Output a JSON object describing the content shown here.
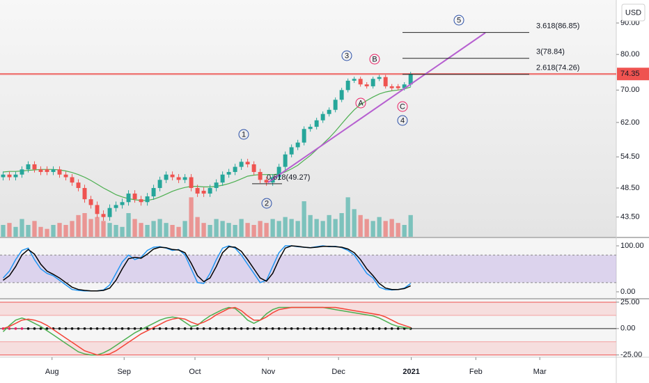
{
  "chart_data": [
    {
      "type": "candlestick",
      "currency": "USD",
      "ylim": [
        40.4,
        98.1
      ],
      "log_scale": true,
      "yticks": [
        {
          "value": 90,
          "label": "90.00"
        },
        {
          "value": 80,
          "label": "80.00"
        },
        {
          "value": 70,
          "label": "70.00"
        },
        {
          "value": 62,
          "label": "62.00"
        },
        {
          "value": 54.5,
          "label": "54.50"
        },
        {
          "value": 48.5,
          "label": "48.50"
        },
        {
          "value": 43.5,
          "label": "43.50"
        }
      ],
      "xlim": [
        -0.5,
        97.8
      ],
      "xticks": [
        {
          "value": 7.8,
          "label": "Aug"
        },
        {
          "value": 19.3,
          "label": "Sep"
        },
        {
          "value": 30.6,
          "label": "Oct"
        },
        {
          "value": 42.3,
          "label": "Nov"
        },
        {
          "value": 53.5,
          "label": "Dec"
        },
        {
          "value": 65.1,
          "label": "2021"
        },
        {
          "value": 75.4,
          "label": "Feb"
        },
        {
          "value": 85.6,
          "label": "Mar"
        }
      ],
      "up_color": "#26a69a",
      "down_color": "#ef5350",
      "open": [
        50.5,
        51,
        50.5,
        51,
        52,
        53,
        52,
        52,
        51.5,
        52,
        51,
        50.5,
        49.5,
        48.5,
        46.5,
        45.5,
        44,
        43.5,
        45,
        45.5,
        46,
        47.5,
        46.5,
        46,
        47,
        48.5,
        50,
        51,
        50.5,
        50,
        50.5,
        48.5,
        48,
        47.5,
        48.5,
        49.5,
        51,
        51.5,
        52.5,
        53.5,
        53,
        51.5,
        50,
        49.5,
        50.5,
        52.5,
        55,
        56.5,
        57.5,
        60.5,
        61,
        62.5,
        64,
        65,
        67.5,
        70,
        72.5,
        73,
        71.5,
        71,
        73,
        73.5,
        71,
        71,
        70.5,
        71.5
      ],
      "high": [
        51.6,
        51.6,
        51.6,
        52.6,
        53.6,
        53.6,
        52.6,
        52.6,
        52.6,
        52.6,
        51.6,
        51.1,
        50.1,
        49.1,
        47.1,
        46.1,
        44.6,
        45.6,
        46.1,
        46.6,
        48.1,
        48.1,
        47.1,
        47.6,
        49.1,
        50.6,
        51.6,
        51.6,
        51.1,
        51.1,
        51.1,
        49.1,
        48.6,
        49.1,
        50.1,
        51.6,
        52.1,
        53.1,
        54.1,
        54.1,
        53.6,
        52.1,
        50.6,
        51.1,
        53.1,
        55.6,
        57.1,
        58.1,
        61.1,
        61.6,
        63.1,
        64.6,
        65.6,
        68.1,
        70.6,
        73.1,
        73.6,
        73.6,
        72.1,
        73.6,
        74.1,
        74.1,
        71.6,
        71.6,
        72.1,
        74.95
      ],
      "low": [
        49.9,
        49.9,
        49.9,
        50.4,
        51.4,
        51.4,
        50.9,
        50.9,
        50.9,
        50.4,
        49.9,
        48.9,
        47.9,
        45.9,
        44.9,
        43.4,
        42.9,
        42.9,
        44.4,
        44.9,
        45.4,
        45.9,
        45.4,
        45.4,
        46.4,
        47.9,
        49.4,
        49.9,
        49.4,
        49.4,
        47.9,
        46.9,
        46.9,
        46.9,
        47.9,
        48.9,
        50.4,
        50.9,
        51.9,
        52.4,
        50.9,
        49.4,
        48.9,
        48.9,
        49.9,
        51.9,
        54.4,
        55.9,
        56.9,
        59.9,
        60.4,
        61.9,
        63.4,
        64.4,
        66.9,
        69.4,
        71.9,
        70.9,
        70.4,
        70.4,
        72.4,
        70.4,
        69.9,
        69.9,
        69.9,
        70.9
      ],
      "close": [
        51,
        50.5,
        51,
        52,
        53,
        52,
        51.5,
        51.5,
        52,
        51,
        50.5,
        49.5,
        48.5,
        46.5,
        45.5,
        44,
        43.5,
        45,
        45.5,
        46,
        47.5,
        46.5,
        46,
        47,
        48.5,
        50,
        51,
        50.5,
        50,
        50.5,
        48.5,
        47.5,
        47.5,
        48.5,
        49.5,
        51,
        51.5,
        52.5,
        53.5,
        53,
        51.5,
        50,
        49.5,
        50.5,
        52.5,
        55,
        56.5,
        57.5,
        60.5,
        61,
        62.5,
        64,
        65,
        67.5,
        70,
        72.5,
        73,
        71.5,
        71,
        73,
        73.5,
        71,
        70.5,
        70.5,
        71.5,
        74.35
      ],
      "volume": [
        30,
        35,
        25,
        45,
        30,
        40,
        25,
        20,
        30,
        35,
        30,
        40,
        55,
        60,
        45,
        50,
        40,
        35,
        30,
        25,
        60,
        45,
        35,
        30,
        40,
        45,
        35,
        30,
        25,
        40,
        100,
        50,
        35,
        30,
        45,
        40,
        35,
        30,
        45,
        35,
        30,
        40,
        35,
        45,
        40,
        50,
        45,
        40,
        90,
        55,
        45,
        40,
        55,
        45,
        60,
        100,
        70,
        55,
        45,
        40,
        50,
        40,
        45,
        35,
        30,
        55
      ],
      "volume_ylim": [
        0,
        600
      ],
      "moving_average": {
        "color": "#4caf50",
        "values": [
          51.5,
          51.6,
          51.6,
          51.7,
          51.8,
          51.9,
          52,
          52,
          52,
          51.9,
          51.7,
          51.4,
          51,
          50.5,
          49.9,
          49.2,
          48.5,
          47.9,
          47.3,
          46.9,
          46.6,
          46.4,
          46.3,
          46.3,
          46.5,
          46.9,
          47.4,
          47.9,
          48.3,
          48.6,
          48.8,
          48.8,
          48.7,
          48.7,
          48.8,
          49,
          49.3,
          49.7,
          50.2,
          50.7,
          50.9,
          51,
          51,
          51,
          51.1,
          51.5,
          52.1,
          52.8,
          53.8,
          54.8,
          56,
          57.2,
          58.5,
          60,
          61.7,
          63.4,
          65,
          66.3,
          67.3,
          68.2,
          69,
          69.5,
          69.8,
          70,
          70.3,
          70.8
        ]
      },
      "last_price": 74.35,
      "fib_levels": [
        {
          "value": 86.85,
          "label": "3.618(86.85)"
        },
        {
          "value": 78.84,
          "label": "3(78.84)"
        },
        {
          "value": 74.26,
          "label": "2.618(74.26)"
        },
        {
          "value": 49.27,
          "label": "0.618(49.27)"
        }
      ],
      "wave_labels": [
        "1",
        "2",
        "3",
        "4",
        "5",
        "A",
        "B",
        "C"
      ]
    },
    {
      "type": "line",
      "ylim": [
        -13.6,
        116.7
      ],
      "yticks": [
        {
          "value": 100,
          "label": "100.00"
        },
        {
          "value": 0,
          "label": "0.00"
        }
      ],
      "band": [
        20,
        80
      ],
      "series": [
        {
          "color": "#2196f3",
          "values": [
            30,
            45,
            70,
            90,
            95,
            70,
            50,
            40,
            35,
            25,
            15,
            5,
            3,
            2,
            2,
            2,
            4,
            15,
            40,
            65,
            80,
            70,
            75,
            90,
            97,
            98,
            95,
            90,
            92,
            80,
            50,
            20,
            18,
            40,
            70,
            95,
            100,
            95,
            80,
            60,
            40,
            20,
            25,
            55,
            85,
            100,
            100,
            98,
            97,
            96,
            98,
            100,
            98,
            99,
            96,
            90,
            80,
            60,
            40,
            30,
            10,
            5,
            4,
            5,
            8,
            18
          ]
        },
        {
          "color": "#000000",
          "values": [
            25,
            35,
            55,
            80,
            92,
            82,
            60,
            45,
            38,
            30,
            20,
            10,
            5,
            3,
            2,
            2,
            3,
            8,
            25,
            50,
            72,
            75,
            73,
            82,
            93,
            97,
            96,
            92,
            91,
            85,
            62,
            35,
            22,
            30,
            55,
            85,
            98,
            97,
            88,
            70,
            50,
            30,
            23,
            40,
            70,
            95,
            100,
            99,
            97,
            96,
            97,
            99,
            99,
            98,
            97,
            93,
            85,
            70,
            50,
            35,
            18,
            8,
            5,
            5,
            7,
            13
          ]
        }
      ]
    },
    {
      "type": "line",
      "ylim": [
        -26.5,
        27.6
      ],
      "yticks": [
        {
          "value": 25,
          "label": "25.00"
        },
        {
          "value": 0,
          "label": "0.00"
        },
        {
          "value": -25,
          "label": "-25.00"
        }
      ],
      "levels": [
        25,
        12.5,
        -12.5,
        -25
      ],
      "series": [
        {
          "color": "#4caf50",
          "values": [
            -3,
            3,
            8,
            10,
            8,
            5,
            2,
            -2,
            -6,
            -10,
            -14,
            -18,
            -22,
            -24,
            -25,
            -25,
            -23,
            -20,
            -16,
            -12,
            -8,
            -4,
            -1,
            2,
            5,
            8,
            10,
            11,
            10,
            6,
            2,
            3,
            8,
            12,
            15,
            18,
            20,
            19,
            14,
            8,
            5,
            8,
            14,
            18,
            20,
            20,
            20,
            20,
            20,
            20,
            20,
            20,
            19,
            18,
            17,
            16,
            15,
            14,
            13,
            12,
            10,
            7,
            4,
            2,
            1,
            0
          ]
        },
        {
          "color": "#f44336",
          "values": [
            0,
            2,
            5,
            8,
            9,
            8,
            6,
            3,
            -1,
            -5,
            -9,
            -13,
            -17,
            -21,
            -23,
            -25,
            -25,
            -24,
            -21,
            -17,
            -13,
            -9,
            -5,
            -2,
            1,
            4,
            7,
            9,
            10,
            9,
            6,
            4,
            6,
            9,
            13,
            16,
            19,
            20,
            17,
            12,
            8,
            8,
            11,
            15,
            18,
            19,
            20,
            20,
            20,
            20,
            20,
            20,
            20,
            20,
            19,
            18,
            17,
            16,
            15,
            14,
            13,
            11,
            8,
            5,
            3,
            1
          ]
        }
      ]
    }
  ]
}
